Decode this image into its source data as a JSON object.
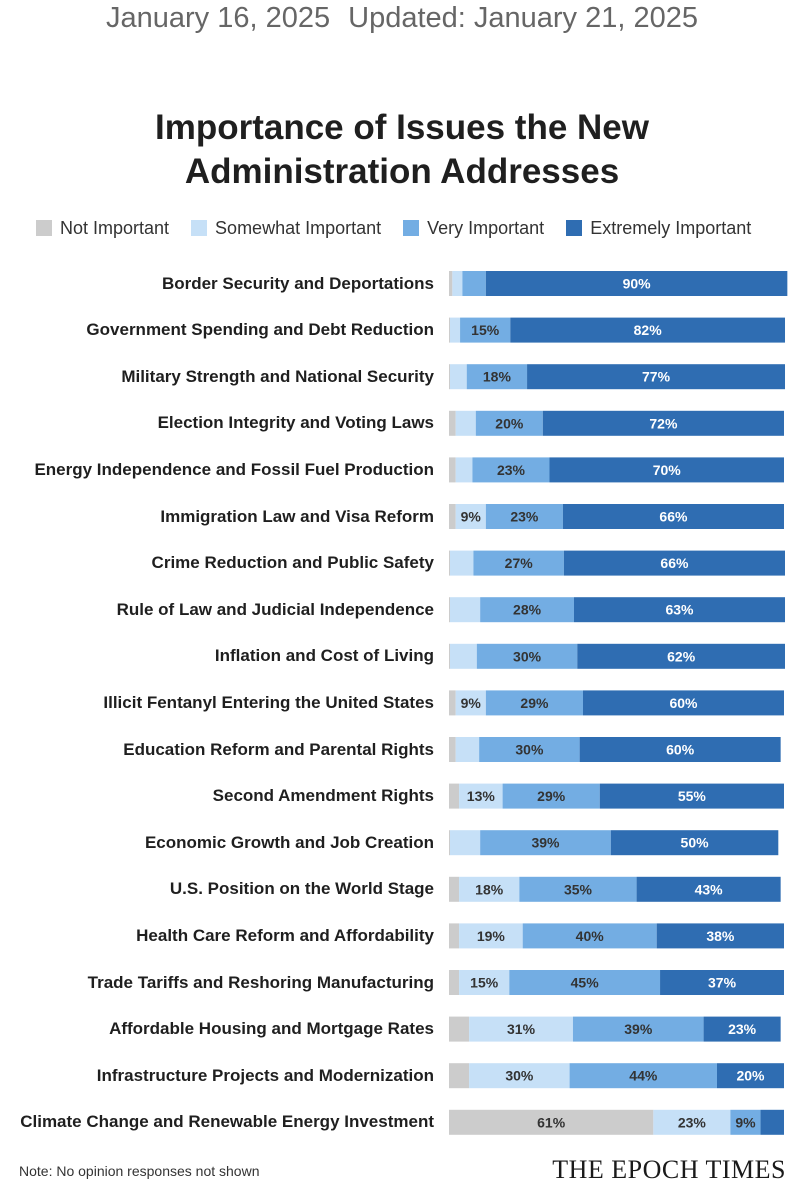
{
  "header": {
    "published": "January 16, 2025",
    "updated": "Updated: January 21, 2025"
  },
  "chart_data": {
    "type": "bar",
    "orientation": "horizontal",
    "stacked": true,
    "title": "Importance of Issues the New Administration Addresses",
    "xlim": [
      0,
      100
    ],
    "grid": false,
    "legend_placement": "top",
    "categories": [
      "Border Security and Deportations",
      "Government Spending and Debt Reduction",
      "Military Strength and National Security",
      "Election Integrity and Voting Laws",
      "Energy Independence and Fossil Fuel Production",
      "Immigration Law and Visa Reform",
      "Crime Reduction and Public Safety",
      "Rule of Law and Judicial Independence",
      "Inflation and Cost of Living",
      "Illicit Fentanyl Entering the United States",
      "Education Reform and Parental Rights",
      "Second Amendment Rights",
      "Economic Growth and Job Creation",
      "U.S. Position on the World Stage",
      "Health Care Reform and Affordability",
      "Trade Tariffs and Reshoring Manufacturing",
      "Affordable Housing and Mortgage Rates",
      "Infrastructure Projects and Modernization",
      "Climate Change and Renewable Energy Investment"
    ],
    "series": [
      {
        "name": "Not Important",
        "color": "#cccccc",
        "values": [
          1,
          0.3,
          0.3,
          2,
          2,
          2,
          0.3,
          0.3,
          0.3,
          2,
          2,
          3,
          0.3,
          3,
          3,
          3,
          6,
          6,
          61
        ]
      },
      {
        "name": "Somewhat Important",
        "color": "#c6e0f7",
        "values": [
          3,
          3,
          5,
          6,
          5,
          9,
          7,
          9,
          8,
          9,
          7,
          13,
          9,
          18,
          19,
          15,
          31,
          30,
          23
        ]
      },
      {
        "name": "Very Important",
        "color": "#73ade3",
        "values": [
          7,
          15,
          18,
          20,
          23,
          23,
          27,
          28,
          30,
          29,
          30,
          29,
          39,
          35,
          40,
          45,
          39,
          44,
          9
        ]
      },
      {
        "name": "Extremely Important",
        "color": "#2f6db2",
        "values": [
          90,
          82,
          77,
          72,
          70,
          66,
          66,
          63,
          62,
          60,
          60,
          55,
          50,
          43,
          38,
          37,
          23,
          20,
          7
        ]
      }
    ],
    "data_labels": [
      [
        null,
        null,
        null,
        "90%"
      ],
      [
        null,
        null,
        "15%",
        "82%"
      ],
      [
        null,
        null,
        "18%",
        "77%"
      ],
      [
        null,
        null,
        "20%",
        "72%"
      ],
      [
        null,
        null,
        "23%",
        "70%"
      ],
      [
        null,
        "9%",
        "23%",
        "66%"
      ],
      [
        null,
        null,
        "27%",
        "66%"
      ],
      [
        null,
        null,
        "28%",
        "63%"
      ],
      [
        null,
        null,
        "30%",
        "62%"
      ],
      [
        null,
        "9%",
        "29%",
        "60%"
      ],
      [
        null,
        null,
        "30%",
        "60%"
      ],
      [
        null,
        "13%",
        "29%",
        "55%"
      ],
      [
        null,
        null,
        "39%",
        "50%"
      ],
      [
        null,
        "18%",
        "35%",
        "43%"
      ],
      [
        null,
        "19%",
        "40%",
        "38%"
      ],
      [
        null,
        "15%",
        "45%",
        "37%"
      ],
      [
        null,
        "31%",
        "39%",
        "23%"
      ],
      [
        null,
        "30%",
        "44%",
        "20%"
      ],
      [
        "61%",
        "23%",
        "9%",
        null
      ]
    ]
  },
  "footer": {
    "note": "Note: No opinion responses not shown",
    "logo": "THE EPOCH TIMES"
  }
}
